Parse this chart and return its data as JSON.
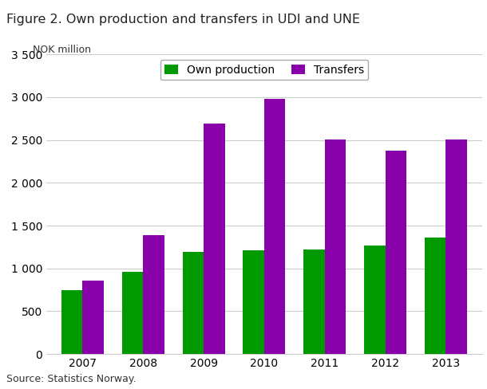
{
  "title": "Figure 2. Own production and transfers in UDI and UNE",
  "ylabel": "NOK million",
  "source": "Source: Statistics Norway.",
  "years": [
    2007,
    2008,
    2009,
    2010,
    2011,
    2012,
    2013
  ],
  "own_production": [
    750,
    960,
    1195,
    1215,
    1220,
    1265,
    1360
  ],
  "transfers": [
    860,
    1390,
    2690,
    2980,
    2510,
    2380,
    2505
  ],
  "own_production_color": "#009900",
  "transfers_color": "#8800AA",
  "ylim": [
    0,
    3500
  ],
  "yticks": [
    0,
    500,
    1000,
    1500,
    2000,
    2500,
    3000,
    3500
  ],
  "ytick_labels": [
    "0",
    "500",
    "1 000",
    "1 500",
    "2 000",
    "2 500",
    "3 000",
    "3 500"
  ],
  "bar_width": 0.35,
  "legend_labels": [
    "Own production",
    "Transfers"
  ],
  "background_color": "#ffffff",
  "grid_color": "#cccccc"
}
